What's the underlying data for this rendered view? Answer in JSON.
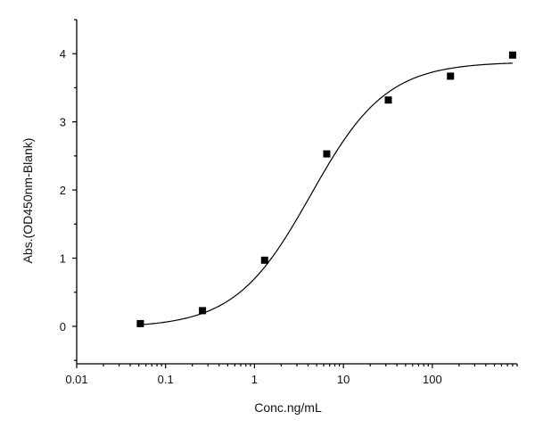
{
  "chart_data": {
    "type": "scatter",
    "title": "",
    "xlabel": "Conc.ng/mL",
    "ylabel": "Abs.(OD450nm-Blank)",
    "xscale": "log",
    "xlim": [
      0.01,
      900
    ],
    "ylim": [
      -0.55,
      4.5
    ],
    "x_ticks": [
      0.01,
      0.1,
      1,
      10,
      100
    ],
    "x_tick_labels": [
      "0.01",
      "0.1",
      "1",
      "10",
      "100"
    ],
    "y_ticks": [
      0,
      1,
      2,
      3,
      4
    ],
    "y_tick_labels": [
      "0",
      "1",
      "2",
      "3",
      "4"
    ],
    "grid": false,
    "legend": "none",
    "series": [
      {
        "x": [
          0.052,
          0.26,
          1.3,
          6.5,
          32,
          160,
          800
        ],
        "y": [
          0.04,
          0.23,
          0.97,
          2.53,
          3.32,
          3.67,
          3.98
        ]
      }
    ],
    "fit_curve": {
      "model": "4PL",
      "bottom": -0.02,
      "top": 3.88,
      "ec50": 4.3,
      "hill": 1.02
    }
  }
}
